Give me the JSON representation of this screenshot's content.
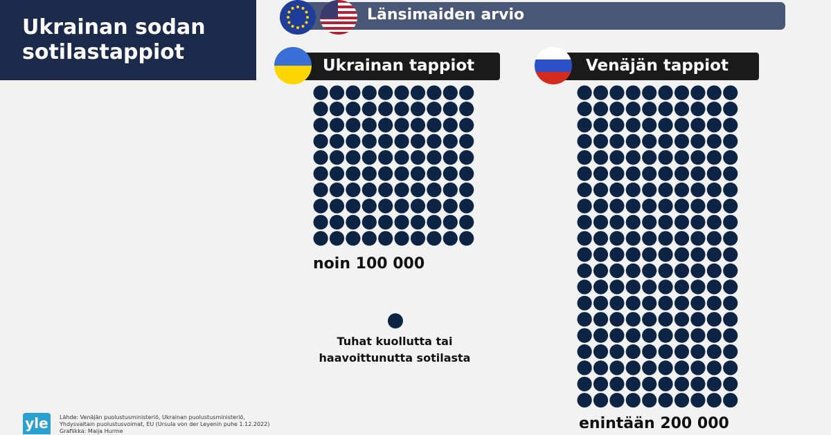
{
  "title": "Ukrainan sodan sotilastappiot",
  "banner": {
    "label": "Länsimaiden arvio",
    "flags": [
      "eu-flag",
      "us-flag"
    ]
  },
  "chart_data": {
    "type": "waffle",
    "unit_label": "Tuhat kuollutta tai haavoittunutta sotilasta",
    "unit_value": 1000,
    "series": [
      {
        "name": "Ukrainan tappiot",
        "dots": 100,
        "columns": 10,
        "label": "noin 100 000",
        "flag": "ukraine-flag"
      },
      {
        "name": "Venäjän tappiot",
        "dots": 200,
        "columns": 10,
        "label": "enintään 200 000",
        "flag": "russia-flag"
      }
    ]
  },
  "colors": {
    "dot": "#0e2445",
    "title_bg": "#1b2a4a",
    "banner_bg": "#4a5878",
    "section_bg": "#1a1a1a",
    "yle": "#2aa0d0"
  },
  "footer": {
    "logo": "yle",
    "source_line1": "Lähde: Venäjän puolustusministeriö, Ukrainan puolustusministeriö,",
    "source_line2": "Yhdysvaltain puolustusvoimat, EU (Ursula von der Leyenin puhe 1.12.2022)",
    "credit": "Grafiikka: Maija Hurme"
  }
}
